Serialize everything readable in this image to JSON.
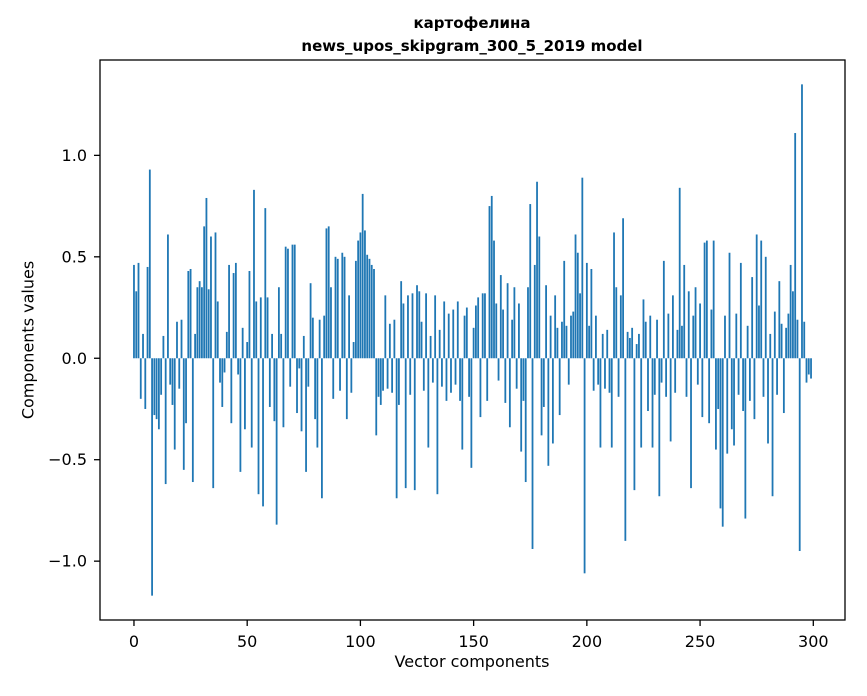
{
  "title": {
    "line1": "картофелина",
    "line2": "news_upos_skipgram_300_5_2019 model"
  },
  "chart_data": {
    "type": "bar",
    "title": "картофелина\nnews_upos_skipgram_300_5_2019 model",
    "xlabel": "Vector components",
    "ylabel": "Components values",
    "legend": "none",
    "grid": false,
    "bar_color": "#1f77b4",
    "xlim": [
      -15,
      314
    ],
    "ylim": [
      -1.29,
      1.47
    ],
    "x_ticks": [
      0,
      50,
      100,
      150,
      200,
      250,
      300
    ],
    "y_ticks": [
      -1.0,
      -0.5,
      0.0,
      0.5,
      1.0
    ],
    "x": "index 0..299",
    "values": [
      0.46,
      0.33,
      0.47,
      -0.2,
      0.12,
      -0.25,
      0.45,
      0.93,
      -1.17,
      -0.28,
      -0.3,
      -0.35,
      -0.18,
      0.11,
      -0.62,
      0.61,
      -0.13,
      -0.23,
      -0.45,
      0.18,
      -0.15,
      0.19,
      -0.55,
      -0.32,
      0.43,
      0.44,
      -0.61,
      0.12,
      0.35,
      0.38,
      0.35,
      0.65,
      0.79,
      0.34,
      0.6,
      -0.64,
      0.62,
      0.28,
      -0.12,
      -0.24,
      -0.07,
      0.13,
      0.46,
      -0.32,
      0.42,
      0.47,
      -0.08,
      -0.56,
      0.15,
      -0.35,
      0.08,
      0.43,
      -0.44,
      0.83,
      0.28,
      -0.67,
      0.3,
      -0.73,
      0.74,
      0.3,
      -0.24,
      0.12,
      -0.31,
      -0.82,
      0.35,
      0.12,
      -0.34,
      0.55,
      0.54,
      -0.14,
      0.56,
      0.56,
      -0.27,
      -0.05,
      -0.36,
      0.11,
      -0.56,
      -0.14,
      0.37,
      0.2,
      -0.3,
      -0.44,
      0.19,
      -0.69,
      0.21,
      0.64,
      0.65,
      0.35,
      -0.2,
      0.5,
      0.49,
      -0.16,
      0.52,
      0.5,
      -0.3,
      0.31,
      -0.17,
      0.08,
      0.48,
      0.58,
      0.62,
      0.81,
      0.63,
      0.51,
      0.49,
      0.46,
      0.44,
      -0.38,
      -0.19,
      -0.23,
      -0.16,
      0.31,
      -0.15,
      0.17,
      -0.17,
      0.19,
      -0.69,
      -0.23,
      0.38,
      0.27,
      -0.64,
      0.31,
      -0.18,
      0.32,
      -0.65,
      0.36,
      0.33,
      0.18,
      -0.16,
      0.32,
      -0.44,
      0.11,
      -0.12,
      0.31,
      -0.67,
      0.14,
      -0.14,
      0.28,
      -0.21,
      0.22,
      -0.17,
      0.24,
      -0.13,
      0.28,
      -0.21,
      -0.45,
      0.21,
      0.25,
      -0.19,
      -0.54,
      0.15,
      0.26,
      0.3,
      -0.29,
      0.32,
      0.32,
      -0.21,
      0.75,
      0.8,
      0.58,
      0.27,
      -0.11,
      0.41,
      0.24,
      -0.22,
      0.37,
      -0.34,
      0.19,
      0.35,
      -0.15,
      0.27,
      -0.46,
      -0.21,
      -0.61,
      0.35,
      0.76,
      -0.94,
      0.46,
      0.87,
      0.6,
      -0.38,
      -0.24,
      0.36,
      -0.53,
      0.21,
      -0.42,
      0.31,
      0.15,
      -0.28,
      0.18,
      0.48,
      0.16,
      -0.13,
      0.21,
      0.23,
      0.61,
      0.52,
      0.32,
      0.89,
      -1.06,
      0.47,
      0.16,
      0.44,
      -0.16,
      0.21,
      -0.13,
      -0.44,
      0.12,
      -0.15,
      0.14,
      -0.17,
      -0.44,
      0.62,
      0.35,
      -0.19,
      0.31,
      0.69,
      -0.9,
      0.13,
      0.1,
      0.15,
      -0.65,
      0.07,
      0.12,
      -0.44,
      0.29,
      0.18,
      -0.26,
      0.21,
      -0.44,
      -0.18,
      0.19,
      -0.68,
      -0.12,
      0.48,
      -0.19,
      0.22,
      -0.41,
      0.31,
      -0.17,
      0.14,
      0.84,
      0.16,
      0.46,
      -0.19,
      0.33,
      -0.64,
      0.21,
      0.35,
      -0.13,
      0.27,
      -0.29,
      0.57,
      0.58,
      -0.32,
      0.24,
      0.58,
      -0.45,
      -0.25,
      -0.74,
      -0.83,
      0.21,
      -0.47,
      0.52,
      -0.35,
      -0.43,
      0.22,
      -0.18,
      0.47,
      -0.26,
      -0.79,
      0.16,
      -0.21,
      0.4,
      -0.3,
      0.61,
      0.26,
      0.58,
      -0.19,
      0.5,
      -0.42,
      0.12,
      -0.68,
      0.23,
      -0.18,
      0.38,
      0.17,
      -0.27,
      0.15,
      0.22,
      0.46,
      0.33,
      1.11,
      0.19,
      -0.95,
      1.35,
      0.18,
      -0.12,
      -0.08,
      -0.1
    ]
  }
}
